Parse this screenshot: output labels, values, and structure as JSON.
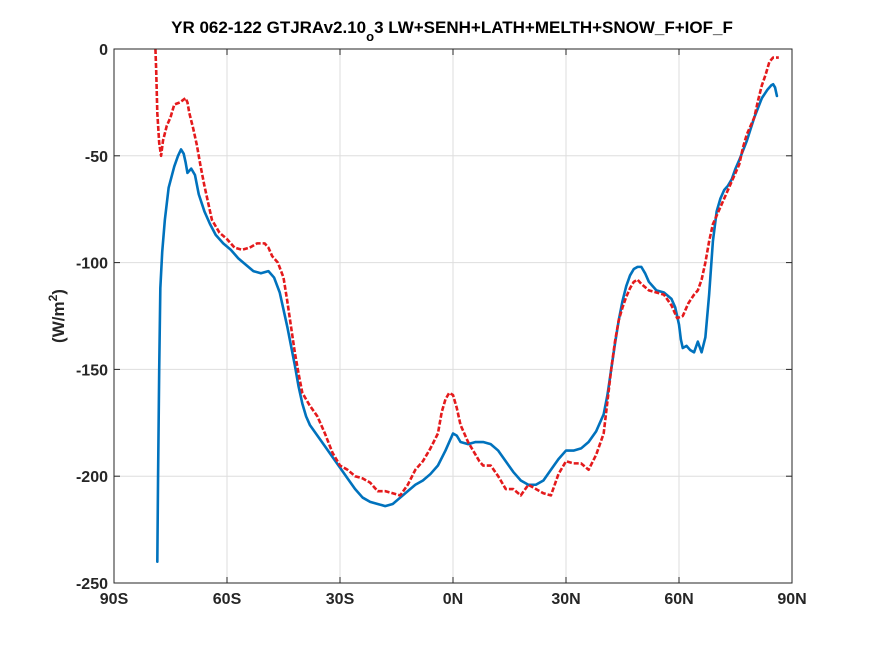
{
  "chart_data": {
    "type": "line",
    "title_main": "YR 062-122 GTJRAv2.10",
    "title_sub": "o",
    "title_tail": "3 LW+SENH+LATH+MELTH+SNOW_F+IOF_F",
    "ylabel_pre": "(W/m",
    "ylabel_sup": "2",
    "ylabel_post": ")",
    "xlabel": "",
    "xlim": [
      -90,
      90
    ],
    "ylim": [
      -250,
      0
    ],
    "grid": true,
    "x_tick_values": [
      -90,
      -60,
      -30,
      0,
      30,
      60,
      90
    ],
    "x_tick_labels": [
      "90S",
      "60S",
      "30S",
      "0N",
      "30N",
      "60N",
      "90N"
    ],
    "y_tick_values": [
      0,
      -50,
      -100,
      -150,
      -200,
      -250
    ],
    "y_tick_labels": [
      "0",
      "-50",
      "-100",
      "-150",
      "-200",
      "-250"
    ],
    "series": [
      {
        "color": "#0072bd",
        "dash": "solid",
        "points": [
          [
            -78.5,
            -240
          ],
          [
            -78.3,
            -200
          ],
          [
            -78,
            -150
          ],
          [
            -77.7,
            -112
          ],
          [
            -77.2,
            -95
          ],
          [
            -76.5,
            -80
          ],
          [
            -75.5,
            -65
          ],
          [
            -74,
            -55
          ],
          [
            -73,
            -50
          ],
          [
            -72.2,
            -47
          ],
          [
            -71.5,
            -49
          ],
          [
            -71,
            -53
          ],
          [
            -70.5,
            -58
          ],
          [
            -69.5,
            -56
          ],
          [
            -68.5,
            -59
          ],
          [
            -67.5,
            -68
          ],
          [
            -66,
            -76
          ],
          [
            -64.5,
            -82
          ],
          [
            -63,
            -87
          ],
          [
            -61,
            -91
          ],
          [
            -59,
            -94
          ],
          [
            -57,
            -98
          ],
          [
            -55,
            -101
          ],
          [
            -53,
            -104
          ],
          [
            -51,
            -105
          ],
          [
            -49,
            -104
          ],
          [
            -47.5,
            -107
          ],
          [
            -46,
            -114
          ],
          [
            -45,
            -122
          ],
          [
            -44,
            -130
          ],
          [
            -43,
            -139
          ],
          [
            -42,
            -148
          ],
          [
            -41,
            -158
          ],
          [
            -40,
            -166
          ],
          [
            -39,
            -172
          ],
          [
            -38,
            -176
          ],
          [
            -36,
            -181
          ],
          [
            -34,
            -186
          ],
          [
            -32,
            -191
          ],
          [
            -30,
            -196
          ],
          [
            -28,
            -201
          ],
          [
            -26,
            -206
          ],
          [
            -24,
            -210
          ],
          [
            -22,
            -212
          ],
          [
            -20,
            -213
          ],
          [
            -18,
            -214
          ],
          [
            -16,
            -213
          ],
          [
            -14,
            -210
          ],
          [
            -12,
            -207
          ],
          [
            -10,
            -204
          ],
          [
            -8,
            -202
          ],
          [
            -6,
            -199
          ],
          [
            -4,
            -195
          ],
          [
            -2,
            -188
          ],
          [
            0,
            -180
          ],
          [
            1,
            -181
          ],
          [
            2,
            -184
          ],
          [
            4,
            -185
          ],
          [
            6,
            -184
          ],
          [
            8,
            -184
          ],
          [
            10,
            -185
          ],
          [
            12,
            -188
          ],
          [
            14,
            -193
          ],
          [
            16,
            -198
          ],
          [
            18,
            -202
          ],
          [
            20,
            -204
          ],
          [
            22,
            -204
          ],
          [
            24,
            -202
          ],
          [
            26,
            -197
          ],
          [
            28,
            -192
          ],
          [
            30,
            -188
          ],
          [
            32,
            -188
          ],
          [
            34,
            -187
          ],
          [
            36,
            -184
          ],
          [
            38,
            -179
          ],
          [
            40,
            -171
          ],
          [
            41,
            -162
          ],
          [
            42,
            -150
          ],
          [
            43,
            -138
          ],
          [
            44,
            -127
          ],
          [
            45,
            -118
          ],
          [
            46,
            -111
          ],
          [
            47,
            -106
          ],
          [
            48,
            -103
          ],
          [
            49,
            -102
          ],
          [
            50,
            -102
          ],
          [
            51,
            -105
          ],
          [
            52,
            -109
          ],
          [
            54,
            -113
          ],
          [
            56,
            -114
          ],
          [
            58,
            -117
          ],
          [
            59,
            -121
          ],
          [
            60,
            -129
          ],
          [
            60.5,
            -136
          ],
          [
            61,
            -140
          ],
          [
            62,
            -139
          ],
          [
            63,
            -141
          ],
          [
            64,
            -142
          ],
          [
            65,
            -137
          ],
          [
            66,
            -142
          ],
          [
            67,
            -135
          ],
          [
            68,
            -115
          ],
          [
            69,
            -90
          ],
          [
            70,
            -76
          ],
          [
            71,
            -70
          ],
          [
            72,
            -66
          ],
          [
            73,
            -64
          ],
          [
            74,
            -61
          ],
          [
            75,
            -56
          ],
          [
            76,
            -52
          ],
          [
            78,
            -43
          ],
          [
            80,
            -32
          ],
          [
            82,
            -23
          ],
          [
            83.5,
            -19
          ],
          [
            84.5,
            -17
          ],
          [
            85,
            -16.5
          ],
          [
            85.5,
            -18
          ],
          [
            86,
            -22
          ]
        ]
      },
      {
        "color": "#e41a1c",
        "dash": "dashed",
        "points": [
          [
            -79,
            0
          ],
          [
            -78.8,
            -10
          ],
          [
            -78.5,
            -30
          ],
          [
            -78,
            -44
          ],
          [
            -77.5,
            -50
          ],
          [
            -77,
            -43
          ],
          [
            -76,
            -36
          ],
          [
            -75,
            -32
          ],
          [
            -74,
            -26
          ],
          [
            -72.5,
            -25
          ],
          [
            -71,
            -23
          ],
          [
            -70.5,
            -25
          ],
          [
            -70,
            -30
          ],
          [
            -69,
            -37
          ],
          [
            -68,
            -45
          ],
          [
            -67,
            -55
          ],
          [
            -66,
            -64
          ],
          [
            -65,
            -72
          ],
          [
            -64,
            -80
          ],
          [
            -62,
            -86
          ],
          [
            -60,
            -89
          ],
          [
            -58,
            -93
          ],
          [
            -56,
            -94
          ],
          [
            -54,
            -93
          ],
          [
            -52,
            -91
          ],
          [
            -50,
            -91
          ],
          [
            -49,
            -93
          ],
          [
            -48,
            -97
          ],
          [
            -46.5,
            -100
          ],
          [
            -45,
            -107
          ],
          [
            -44,
            -118
          ],
          [
            -43,
            -130
          ],
          [
            -42,
            -142
          ],
          [
            -41,
            -152
          ],
          [
            -40,
            -161
          ],
          [
            -38,
            -167
          ],
          [
            -36,
            -172
          ],
          [
            -34,
            -180
          ],
          [
            -32,
            -189
          ],
          [
            -30,
            -195
          ],
          [
            -28,
            -197
          ],
          [
            -26,
            -200
          ],
          [
            -24,
            -201
          ],
          [
            -22,
            -203
          ],
          [
            -20,
            -207
          ],
          [
            -18,
            -207
          ],
          [
            -16,
            -208
          ],
          [
            -14,
            -209
          ],
          [
            -12,
            -204
          ],
          [
            -10,
            -197
          ],
          [
            -8,
            -193
          ],
          [
            -6,
            -187
          ],
          [
            -4,
            -180
          ],
          [
            -3,
            -170
          ],
          [
            -2,
            -164
          ],
          [
            -1,
            -161
          ],
          [
            0,
            -162
          ],
          [
            1,
            -168
          ],
          [
            2,
            -176
          ],
          [
            4,
            -184
          ],
          [
            6,
            -190
          ],
          [
            7,
            -193
          ],
          [
            8,
            -195
          ],
          [
            10,
            -195
          ],
          [
            12,
            -200
          ],
          [
            14,
            -206
          ],
          [
            16,
            -206
          ],
          [
            18,
            -209
          ],
          [
            20,
            -204
          ],
          [
            22,
            -206
          ],
          [
            24,
            -208
          ],
          [
            26,
            -209
          ],
          [
            28,
            -199
          ],
          [
            30,
            -193
          ],
          [
            32,
            -194
          ],
          [
            34,
            -194
          ],
          [
            36,
            -197
          ],
          [
            38,
            -190
          ],
          [
            40,
            -180
          ],
          [
            41,
            -165
          ],
          [
            42,
            -150
          ],
          [
            43,
            -137
          ],
          [
            44,
            -127
          ],
          [
            45,
            -121
          ],
          [
            46,
            -116
          ],
          [
            47,
            -112
          ],
          [
            48,
            -109
          ],
          [
            49,
            -108
          ],
          [
            50,
            -110
          ],
          [
            52,
            -113
          ],
          [
            54,
            -114
          ],
          [
            56,
            -115
          ],
          [
            58,
            -120
          ],
          [
            59.5,
            -126
          ],
          [
            61,
            -125
          ],
          [
            62.5,
            -119
          ],
          [
            64,
            -115
          ],
          [
            65,
            -113
          ],
          [
            66,
            -108
          ],
          [
            67,
            -100
          ],
          [
            68,
            -90
          ],
          [
            69,
            -82
          ],
          [
            70,
            -78
          ],
          [
            71,
            -74
          ],
          [
            72,
            -70
          ],
          [
            74,
            -62
          ],
          [
            76,
            -54
          ],
          [
            77,
            -46
          ],
          [
            78,
            -40
          ],
          [
            80,
            -32
          ],
          [
            81,
            -24
          ],
          [
            82,
            -17
          ],
          [
            83,
            -12
          ],
          [
            84,
            -6
          ],
          [
            85,
            -4
          ],
          [
            86.5,
            -4
          ]
        ]
      }
    ]
  }
}
